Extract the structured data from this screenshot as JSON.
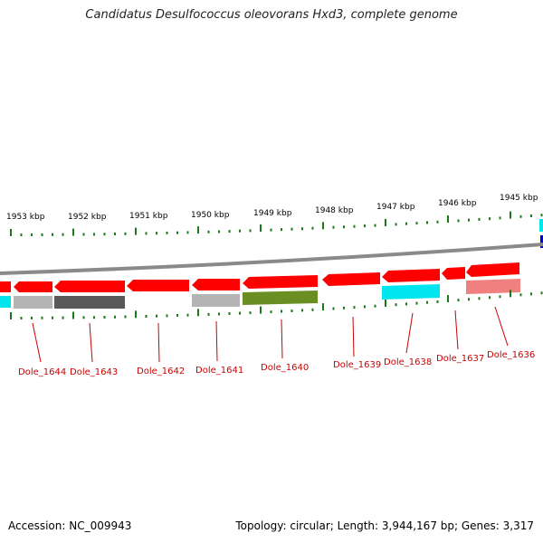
{
  "title": "Candidatus Desulfococcus oleovorans Hxd3, complete genome",
  "footer": {
    "accession": "Accession: NC_009943",
    "summary": "Topology: circular; Length: 3,944,167 bp; Genes: 3,317"
  },
  "colors": {
    "backbone": "#8a8a8a",
    "strand_reverse": "#ff0000",
    "tick": "#1a7a1a",
    "gene_label": "#cc0000",
    "cog_gray": "#b4b4b4",
    "cog_dark": "#595959",
    "cog_olive": "#6b8e23",
    "cog_cyan": "#00e5ee",
    "cog_pink": "#f08080",
    "cog_blue": "#0000cc"
  },
  "kbp_ticks": [
    "1953 kbp",
    "1952 kbp",
    "1951 kbp",
    "1950 kbp",
    "1949 kbp",
    "1948 kbp",
    "1947 kbp",
    "1946 kbp",
    "1945 kbp"
  ],
  "gene_labels": [
    "Dole_1644",
    "Dole_1643",
    "Dole_1642",
    "Dole_1641",
    "Dole_1640",
    "Dole_1639",
    "Dole_1638",
    "Dole_1637",
    "Dole_1636"
  ]
}
